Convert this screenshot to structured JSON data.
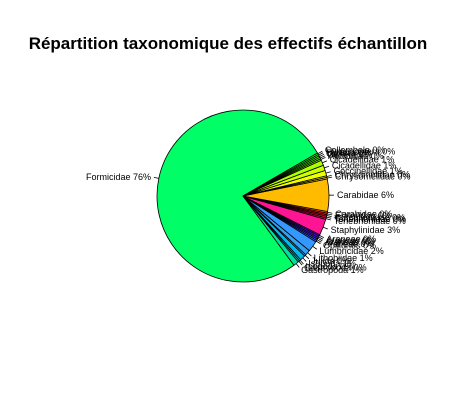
{
  "chart_data": {
    "type": "pie",
    "title": "Répartition taxonomique des effectifs échantillon",
    "start_angle_deg": 30,
    "direction": "counterclockwise",
    "slices": [
      {
        "label": "Formicidae 76%",
        "value": 76,
        "color": "#00ff66"
      },
      {
        "label": "Gastropoda 1%",
        "value": 1,
        "color": "#00e0a0"
      },
      {
        "label": "Gastropoda 0%",
        "value": 0.3,
        "color": "#00d0c0"
      },
      {
        "label": "Isopoda 0%",
        "value": 0.3,
        "color": "#00c8d8"
      },
      {
        "label": "Isopoda 1%",
        "value": 1,
        "color": "#00b8f0"
      },
      {
        "label": "Julida 0%",
        "value": 0.3,
        "color": "#22aaf0"
      },
      {
        "label": "Lithobiidae 1%",
        "value": 1,
        "color": "#33a0f0"
      },
      {
        "label": "Lumbricidae 2%",
        "value": 2,
        "color": "#3399ff"
      },
      {
        "label": "Opiliones 0%",
        "value": 0.3,
        "color": "#3366ff"
      },
      {
        "label": "Araneae 0%",
        "value": 0.3,
        "color": "#3344ff"
      },
      {
        "label": "Araneae 0%",
        "value": 0.3,
        "color": "#4422ff"
      },
      {
        "label": "Araneae 0%",
        "value": 0.3,
        "color": "#5511ff"
      },
      {
        "label": "Araneae 0%",
        "value": 0.3,
        "color": "#6600ff"
      },
      {
        "label": "Staphylinidae 3%",
        "value": 3,
        "color": "#ff1493"
      },
      {
        "label": "Tenebrionidae 0%",
        "value": 0.3,
        "color": "#ff0066"
      },
      {
        "label": "Tenebrionidae 0%",
        "value": 0.3,
        "color": "#ff0040"
      },
      {
        "label": "Curculionidae 0%",
        "value": 0.3,
        "color": "#ff0020"
      },
      {
        "label": "Elateridae 0%",
        "value": 0.3,
        "color": "#ff2000"
      },
      {
        "label": "Carabidae 0%",
        "value": 0.3,
        "color": "#ff5500"
      },
      {
        "label": "Carabidae 6%",
        "value": 6,
        "color": "#ffbb00"
      },
      {
        "label": "Chrysomelidae 0%",
        "value": 0.3,
        "color": "#ffdd00"
      },
      {
        "label": "Chrysomelidae 0%",
        "value": 0.3,
        "color": "#ffee00"
      },
      {
        "label": "Coccinellidae 1%",
        "value": 1,
        "color": "#eeff00"
      },
      {
        "label": "Cicadellidae 1%",
        "value": 1,
        "color": "#ccff00"
      },
      {
        "label": "Cicadellidae 1%",
        "value": 1,
        "color": "#aaff00"
      },
      {
        "label": "Aphididae 0%",
        "value": 0.3,
        "color": "#88ff00"
      },
      {
        "label": "Diptera 0%",
        "value": 0.3,
        "color": "#66ff00"
      },
      {
        "label": "Diptera 0%",
        "value": 0.3,
        "color": "#44ff00"
      },
      {
        "label": "Hymenoptera 0%",
        "value": 0.3,
        "color": "#22ff00"
      },
      {
        "label": "Collembola 0%",
        "value": 0.3,
        "color": "#00ff22"
      }
    ]
  }
}
